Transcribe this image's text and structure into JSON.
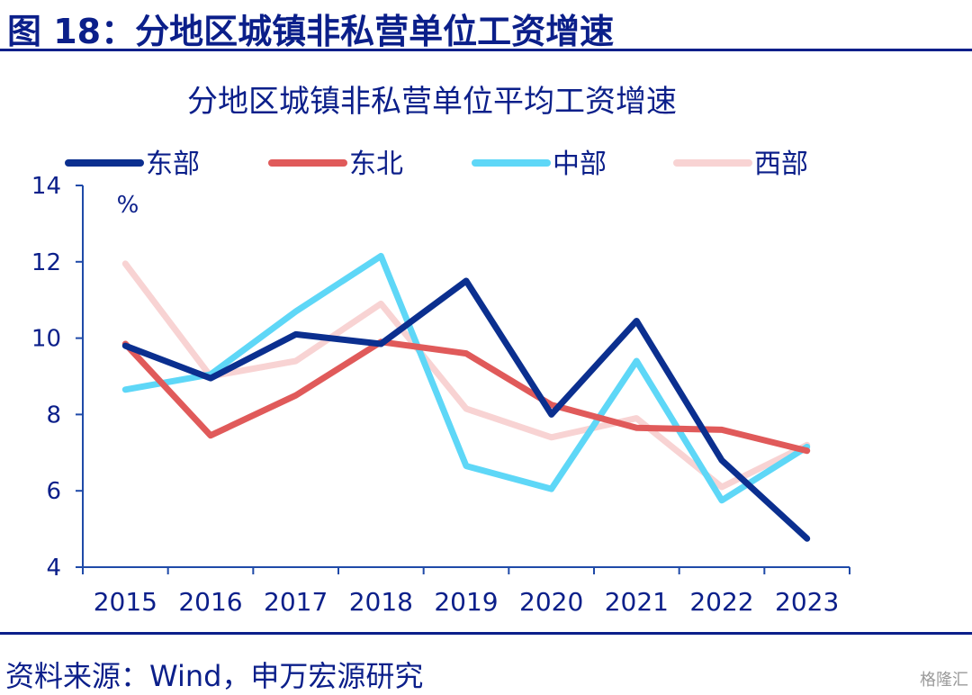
{
  "figure_title": "图 18：分地区城镇非私营单位工资增速",
  "source": "资料来源：Wind，申万宏源研究",
  "watermark": "格隆汇",
  "chart_data": {
    "type": "line",
    "title": "分地区城镇非私营单位平均工资增速",
    "ylabel": "%",
    "xlabel": "",
    "categories": [
      "2015",
      "2016",
      "2017",
      "2018",
      "2019",
      "2020",
      "2021",
      "2022",
      "2023"
    ],
    "ylim": [
      4,
      14
    ],
    "yticks": [
      4,
      6,
      8,
      10,
      12,
      14
    ],
    "grid": false,
    "legend_position": "top",
    "series": [
      {
        "name": "东部",
        "color": "#0b2f8f",
        "values": [
          9.8,
          8.95,
          10.1,
          9.85,
          11.5,
          8.0,
          10.45,
          6.8,
          4.75
        ]
      },
      {
        "name": "东北",
        "color": "#e05a5a",
        "values": [
          9.85,
          7.45,
          8.5,
          9.9,
          9.6,
          8.25,
          7.65,
          7.6,
          7.05
        ]
      },
      {
        "name": "中部",
        "color": "#5ed7f7",
        "values": [
          8.65,
          9.05,
          10.7,
          12.15,
          6.65,
          6.05,
          9.4,
          5.75,
          7.15
        ]
      },
      {
        "name": "西部",
        "color": "#f8d3d3",
        "values": [
          11.95,
          9.0,
          9.4,
          10.9,
          8.15,
          7.4,
          7.9,
          6.1,
          7.2
        ]
      }
    ]
  }
}
